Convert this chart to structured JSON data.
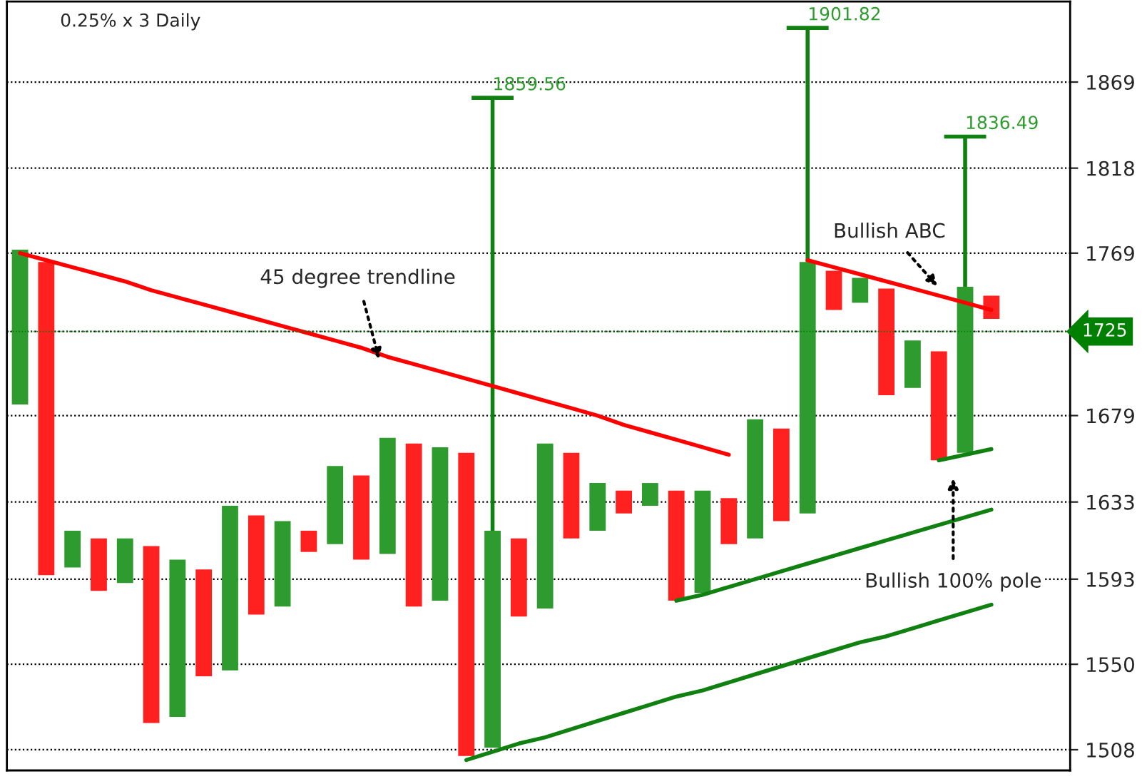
{
  "chart_data": {
    "type": "bar",
    "title": "0.25% x 3 Daily",
    "categories": [
      null,
      null,
      null,
      null,
      null,
      null,
      null,
      null,
      null,
      null,
      null,
      null,
      null,
      null,
      null,
      null,
      null,
      null,
      null,
      null,
      null,
      null,
      null,
      null,
      null,
      null,
      null,
      null,
      null,
      null,
      null,
      null,
      null,
      null,
      null,
      null,
      null,
      null
    ],
    "log": true,
    "grid": "y",
    "ylim": [
      1498,
      1918
    ],
    "yticks": [
      1508,
      1550,
      1593,
      1633,
      1679,
      {
        "value": 1725,
        "label": null
      },
      1769,
      1818,
      1869
    ],
    "series": [
      {
        "values": [
          86,
          169,
          19,
          27,
          23,
          89,
          79,
          54,
          84,
          51,
          44,
          11,
          41,
          44,
          61,
          85,
          80,
          154,
          109,
          40,
          86,
          45,
          25,
          12,
          12,
          57,
          53,
          24,
          63,
          49,
          137,
          22,
          14,
          59,
          26,
          59,
          91,
          13
        ],
        "base": [
          1685,
          1595,
          1599,
          1587,
          1591,
          1521,
          1524,
          1544,
          1547,
          1575,
          1579,
          1607,
          1611,
          1603,
          1606,
          1579,
          1582,
          1505,
          1509,
          1574,
          1578,
          1614,
          1618,
          1627,
          1631,
          1582,
          1586,
          1611,
          1614,
          1623,
          1627,
          1737,
          1741,
          1690,
          1694,
          1655,
          1659,
          1732
        ],
        "colors": [
          "#2e9b2e",
          "#ff2020",
          "#2e9b2e",
          "#ff2020",
          "#2e9b2e",
          "#ff2020",
          "#2e9b2e",
          "#ff2020",
          "#2e9b2e",
          "#ff2020",
          "#2e9b2e",
          "#ff2020",
          "#2e9b2e",
          "#ff2020",
          "#2e9b2e",
          "#ff2020",
          "#2e9b2e",
          "#ff2020",
          "#2e9b2e",
          "#ff2020",
          "#2e9b2e",
          "#ff2020",
          "#2e9b2e",
          "#ff2020",
          "#2e9b2e",
          "#ff2020",
          "#2e9b2e",
          "#ff2020",
          "#2e9b2e",
          "#ff2020",
          "#2e9b2e",
          "#ff2020",
          "#2e9b2e",
          "#ff2020",
          "#2e9b2e",
          "#ff2020",
          "#2e9b2e",
          "#ff2020"
        ],
        "errors": [
          null,
          null,
          null,
          null,
          null,
          null,
          null,
          null,
          null,
          null,
          null,
          null,
          null,
          null,
          null,
          null,
          null,
          null,
          [
            1618,
            1859.56
          ],
          null,
          null,
          null,
          null,
          null,
          null,
          null,
          null,
          null,
          null,
          null,
          [
            1764,
            1901.82
          ],
          null,
          null,
          null,
          null,
          null,
          [
            1750,
            1836.49
          ],
          null
        ]
      },
      {
        "type": "line",
        "color": "#ff0000",
        "values": [
          1769,
          1765,
          1761,
          1757,
          1753,
          1748,
          1744,
          1740,
          1736,
          1732,
          1728,
          1724,
          1720,
          1716,
          1711,
          1707,
          1703,
          1699,
          1695,
          1691,
          1687,
          1683,
          1679,
          1674,
          1670,
          1666,
          1662,
          1658,
          null,
          null,
          null,
          null,
          null,
          null,
          null,
          null,
          null,
          null
        ]
      },
      {
        "type": "line",
        "color": "#ff0000",
        "values": [
          null,
          null,
          null,
          null,
          null,
          null,
          null,
          null,
          null,
          null,
          null,
          null,
          null,
          null,
          null,
          null,
          null,
          null,
          null,
          null,
          null,
          null,
          null,
          null,
          null,
          null,
          null,
          null,
          null,
          null,
          1765,
          1761,
          1757,
          1753,
          1749,
          1745,
          1741,
          1737
        ]
      },
      {
        "type": "line",
        "color": "#108010",
        "values": [
          null,
          null,
          null,
          null,
          null,
          null,
          null,
          null,
          null,
          null,
          null,
          null,
          null,
          null,
          null,
          null,
          null,
          1503,
          1507,
          1511,
          1514,
          1518,
          1522,
          1526,
          1530,
          1534,
          1537,
          1541,
          1545,
          1549,
          1553,
          1557,
          1561,
          1564,
          1568,
          1572,
          1576,
          1580
        ]
      },
      {
        "type": "line",
        "color": "#108010",
        "values": [
          null,
          null,
          null,
          null,
          null,
          null,
          null,
          null,
          null,
          null,
          null,
          null,
          null,
          null,
          null,
          null,
          null,
          null,
          null,
          null,
          null,
          null,
          null,
          null,
          null,
          1582,
          1585,
          1589,
          1593,
          1597,
          1601,
          1605,
          1609,
          1613,
          1617,
          1621,
          1625,
          1629
        ]
      },
      {
        "type": "line",
        "color": "#108010",
        "values": [
          null,
          null,
          null,
          null,
          null,
          null,
          null,
          null,
          null,
          null,
          null,
          null,
          null,
          null,
          null,
          null,
          null,
          null,
          null,
          null,
          null,
          null,
          null,
          null,
          null,
          null,
          null,
          null,
          null,
          null,
          null,
          null,
          null,
          null,
          null,
          1655,
          1658,
          1661
        ]
      }
    ],
    "ref_lines": [
      {
        "axis": "y",
        "value": 1725,
        "label": "1725",
        "color": "#008000"
      }
    ],
    "annotations": [
      "1859.56",
      "1901.82",
      "1836.49",
      "45 degree trendline",
      "Bullish ABC",
      "Bullish 100% pole"
    ]
  }
}
